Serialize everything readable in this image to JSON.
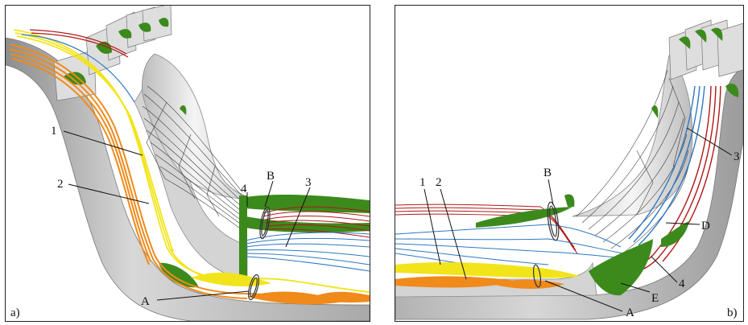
{
  "panels": [
    {
      "tag": "a)",
      "labels": {
        "l1": "1",
        "l2": "2",
        "l3": "3",
        "l4": "4",
        "lA": "A",
        "lB": "B"
      }
    },
    {
      "tag": "b)",
      "labels": {
        "l1": "1",
        "l2": "2",
        "l3": "3",
        "l4": "4",
        "lA": "A",
        "lB": "B",
        "lD": "D",
        "lE": "E"
      }
    }
  ],
  "colors": {
    "wall": "#c9c9c9",
    "wall_dark": "#9a9a9a",
    "blade": "#e6e6e6",
    "vortex_green": "#3c8a1c",
    "stream_red": "#b01818",
    "stream_blue": "#2f78c0",
    "stream_yellow": "#f2e41a",
    "stream_orange": "#f08a1a",
    "wall_lines": "#333333"
  },
  "icons": [
    "streamline-tube",
    "vortex-core",
    "limiting-streamlines"
  ]
}
